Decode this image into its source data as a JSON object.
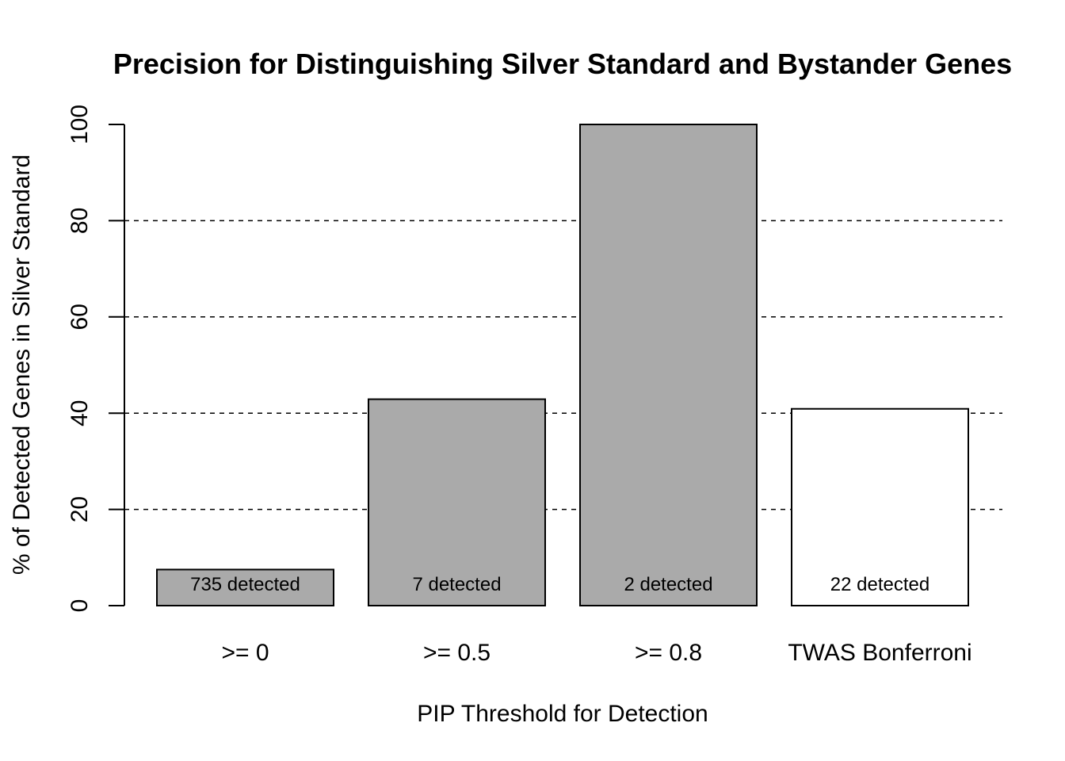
{
  "chart_data": {
    "type": "bar",
    "title": "Precision for Distinguishing Silver Standard and Bystander Genes",
    "xlabel": "PIP Threshold for Detection",
    "ylabel": "% of Detected Genes in Silver Standard",
    "categories": [
      ">= 0",
      ">= 0.5",
      ">= 0.8",
      "TWAS Bonferroni"
    ],
    "values": [
      7.5,
      42.9,
      100,
      40.9
    ],
    "data_labels": [
      "735 detected",
      "7 detected",
      "2 detected",
      "22 detected"
    ],
    "bar_colors": [
      "#aaaaaa",
      "#aaaaaa",
      "#aaaaaa",
      "#ffffff"
    ],
    "ylim": [
      0,
      100
    ],
    "yticks": [
      0,
      20,
      40,
      60,
      80,
      100
    ],
    "gridlines": [
      20,
      40,
      60,
      80
    ],
    "grid": "horizontal dashed"
  }
}
